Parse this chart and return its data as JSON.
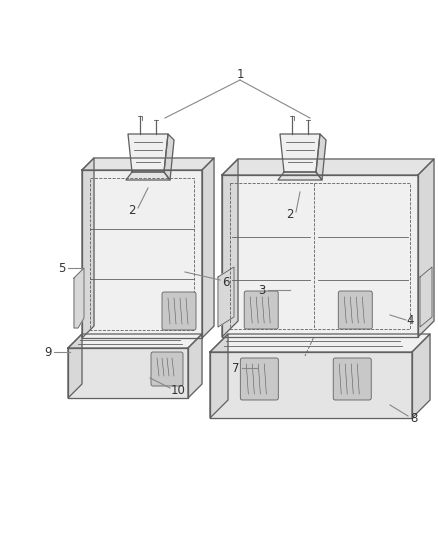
{
  "bg_color": "#ffffff",
  "line_color": "#606060",
  "fill_main": "#f0f0f0",
  "fill_side": "#d8d8d8",
  "fill_top": "#e4e4e4",
  "fill_dark": "#c8c8c8",
  "label_color": "#333333",
  "leader_color": "#888888",
  "figsize": [
    4.38,
    5.33
  ],
  "dpi": 100,
  "label_fs": 8.5,
  "lw": 0.9,
  "lw2": 0.6
}
